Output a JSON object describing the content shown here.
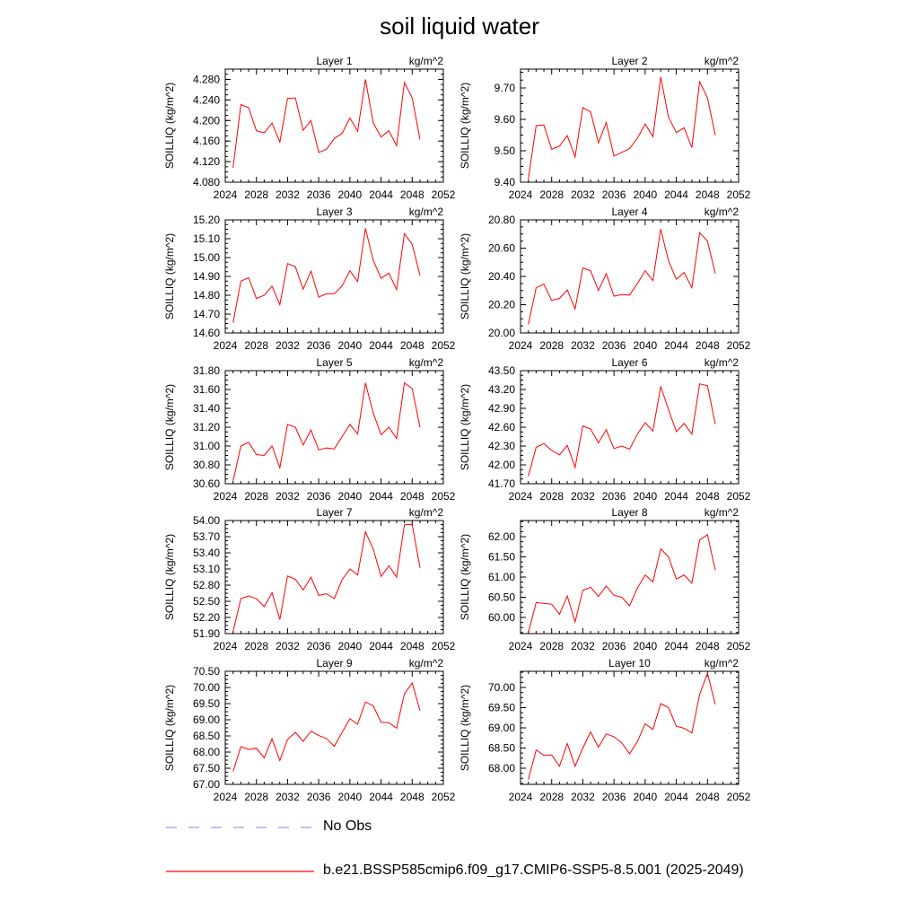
{
  "title": "soil liquid water",
  "legend": {
    "obs_label": "No Obs",
    "obs_color": "#9a9aee",
    "model_label": "b.e21.BSSP585cmip6.f09_g17.CMIP6-SSP5-8.5.001 (2025-2049)",
    "model_color": "#ff0000"
  },
  "chart_data": [
    {
      "type": "line",
      "title": "Layer 1",
      "unit": "kg/m^2",
      "ylabel": "SOILLIQ  (kg/m^2)",
      "xlim": [
        2024,
        2052
      ],
      "xticks": [
        2024,
        2028,
        2032,
        2036,
        2040,
        2044,
        2048,
        2052
      ],
      "ylim": [
        4.08,
        4.3
      ],
      "yticks": [
        "4.080",
        "4.120",
        "4.160",
        "4.200",
        "4.240",
        "4.280"
      ],
      "x": [
        2025,
        2026,
        2027,
        2028,
        2029,
        2030,
        2031,
        2032,
        2033,
        2034,
        2035,
        2036,
        2037,
        2038,
        2039,
        2040,
        2041,
        2042,
        2043,
        2044,
        2045,
        2046,
        2047,
        2048,
        2049
      ],
      "series": [
        {
          "color": "#ff0000",
          "values": [
            4.108,
            4.231,
            4.225,
            4.18,
            4.176,
            4.195,
            4.158,
            4.243,
            4.244,
            4.181,
            4.2,
            4.138,
            4.144,
            4.165,
            4.175,
            4.205,
            4.179,
            4.28,
            4.195,
            4.168,
            4.18,
            4.151,
            4.274,
            4.244,
            4.163
          ]
        }
      ]
    },
    {
      "type": "line",
      "title": "Layer 2",
      "unit": "kg/m^2",
      "ylabel": "SOILLIQ  (kg/m^2)",
      "xlim": [
        2024,
        2052
      ],
      "xticks": [
        2024,
        2028,
        2032,
        2036,
        2040,
        2044,
        2048,
        2052
      ],
      "ylim": [
        9.4,
        9.76
      ],
      "yticks": [
        "9.40",
        "9.50",
        "9.60",
        "9.70"
      ],
      "x": [
        2025,
        2026,
        2027,
        2028,
        2029,
        2030,
        2031,
        2032,
        2033,
        2034,
        2035,
        2036,
        2037,
        2038,
        2039,
        2040,
        2041,
        2042,
        2043,
        2044,
        2045,
        2046,
        2047,
        2048,
        2049
      ],
      "series": [
        {
          "color": "#ff0000",
          "values": [
            9.41,
            9.58,
            9.582,
            9.505,
            9.515,
            9.548,
            9.48,
            9.637,
            9.624,
            9.525,
            9.59,
            9.483,
            9.495,
            9.507,
            9.54,
            9.585,
            9.545,
            9.735,
            9.607,
            9.558,
            9.573,
            9.51,
            9.72,
            9.668,
            9.55
          ]
        }
      ]
    },
    {
      "type": "line",
      "title": "Layer 3",
      "unit": "kg/m^2",
      "ylabel": "SOILLIQ  (kg/m^2)",
      "xlim": [
        2024,
        2052
      ],
      "xticks": [
        2024,
        2028,
        2032,
        2036,
        2040,
        2044,
        2048,
        2052
      ],
      "ylim": [
        14.6,
        15.2
      ],
      "yticks": [
        "14.60",
        "14.70",
        "14.80",
        "14.90",
        "15.00",
        "15.10",
        "15.20"
      ],
      "x": [
        2025,
        2026,
        2027,
        2028,
        2029,
        2030,
        2031,
        2032,
        2033,
        2034,
        2035,
        2036,
        2037,
        2038,
        2039,
        2040,
        2041,
        2042,
        2043,
        2044,
        2045,
        2046,
        2047,
        2048,
        2049
      ],
      "series": [
        {
          "color": "#ff0000",
          "values": [
            14.655,
            14.875,
            14.893,
            14.783,
            14.8,
            14.848,
            14.75,
            14.968,
            14.952,
            14.832,
            14.928,
            14.79,
            14.808,
            14.808,
            14.85,
            14.93,
            14.873,
            15.155,
            14.985,
            14.89,
            14.917,
            14.83,
            15.127,
            15.07,
            14.905
          ]
        }
      ]
    },
    {
      "type": "line",
      "title": "Layer 4",
      "unit": "kg/m^2",
      "ylabel": "SOILLIQ  (kg/m^2)",
      "xlim": [
        2024,
        2052
      ],
      "xticks": [
        2024,
        2028,
        2032,
        2036,
        2040,
        2044,
        2048,
        2052
      ],
      "ylim": [
        20.0,
        20.8
      ],
      "yticks": [
        "20.00",
        "20.20",
        "20.40",
        "20.60",
        "20.80"
      ],
      "x": [
        2025,
        2026,
        2027,
        2028,
        2029,
        2030,
        2031,
        2032,
        2033,
        2034,
        2035,
        2036,
        2037,
        2038,
        2039,
        2040,
        2041,
        2042,
        2043,
        2044,
        2045,
        2046,
        2047,
        2048,
        2049
      ],
      "series": [
        {
          "color": "#ff0000",
          "values": [
            20.06,
            20.32,
            20.345,
            20.23,
            20.245,
            20.305,
            20.17,
            20.46,
            20.44,
            20.3,
            20.42,
            20.26,
            20.272,
            20.268,
            20.35,
            20.44,
            20.37,
            20.735,
            20.51,
            20.38,
            20.428,
            20.32,
            20.71,
            20.65,
            20.42
          ]
        }
      ]
    },
    {
      "type": "line",
      "title": "Layer 5",
      "unit": "kg/m^2",
      "ylabel": "SOILLIQ  (kg/m^2)",
      "xlim": [
        2024,
        2052
      ],
      "xticks": [
        2024,
        2028,
        2032,
        2036,
        2040,
        2044,
        2048,
        2052
      ],
      "ylim": [
        30.6,
        31.8
      ],
      "yticks": [
        "30.60",
        "30.80",
        "31.00",
        "31.20",
        "31.40",
        "31.60",
        "31.80"
      ],
      "x": [
        2025,
        2026,
        2027,
        2028,
        2029,
        2030,
        2031,
        2032,
        2033,
        2034,
        2035,
        2036,
        2037,
        2038,
        2039,
        2040,
        2041,
        2042,
        2043,
        2044,
        2045,
        2046,
        2047,
        2048,
        2049
      ],
      "series": [
        {
          "color": "#ff0000",
          "values": [
            30.63,
            31.0,
            31.04,
            30.91,
            30.9,
            31.0,
            30.77,
            31.23,
            31.2,
            31.01,
            31.17,
            30.96,
            30.98,
            30.97,
            31.1,
            31.23,
            31.13,
            31.67,
            31.35,
            31.12,
            31.2,
            31.08,
            31.67,
            31.61,
            31.2
          ]
        }
      ]
    },
    {
      "type": "line",
      "title": "Layer 6",
      "unit": "kg/m^2",
      "ylabel": "SOILLIQ  (kg/m^2)",
      "xlim": [
        2024,
        2052
      ],
      "xticks": [
        2024,
        2028,
        2032,
        2036,
        2040,
        2044,
        2048,
        2052
      ],
      "ylim": [
        41.7,
        43.5
      ],
      "yticks": [
        "41.70",
        "42.00",
        "42.30",
        "42.60",
        "42.90",
        "43.20",
        "43.50"
      ],
      "x": [
        2025,
        2026,
        2027,
        2028,
        2029,
        2030,
        2031,
        2032,
        2033,
        2034,
        2035,
        2036,
        2037,
        2038,
        2039,
        2040,
        2041,
        2042,
        2043,
        2044,
        2045,
        2046,
        2047,
        2048,
        2049
      ],
      "series": [
        {
          "color": "#ff0000",
          "values": [
            41.82,
            42.28,
            42.34,
            42.23,
            42.16,
            42.31,
            41.96,
            42.62,
            42.57,
            42.35,
            42.56,
            42.26,
            42.3,
            42.25,
            42.49,
            42.67,
            42.54,
            43.25,
            42.88,
            42.53,
            42.66,
            42.49,
            43.29,
            43.26,
            42.65
          ]
        }
      ]
    },
    {
      "type": "line",
      "title": "Layer 7",
      "unit": "kg/m^2",
      "ylabel": "SOILLIQ  (kg/m^2)",
      "xlim": [
        2024,
        2052
      ],
      "xticks": [
        2024,
        2028,
        2032,
        2036,
        2040,
        2044,
        2048,
        2052
      ],
      "ylim": [
        51.9,
        54.0
      ],
      "yticks": [
        "51.90",
        "52.20",
        "52.50",
        "52.80",
        "53.10",
        "53.40",
        "53.70",
        "54.00"
      ],
      "x": [
        2025,
        2026,
        2027,
        2028,
        2029,
        2030,
        2031,
        2032,
        2033,
        2034,
        2035,
        2036,
        2037,
        2038,
        2039,
        2040,
        2041,
        2042,
        2043,
        2044,
        2045,
        2046,
        2047,
        2048,
        2049
      ],
      "series": [
        {
          "color": "#ff0000",
          "values": [
            51.94,
            52.55,
            52.6,
            52.55,
            52.4,
            52.66,
            52.16,
            52.97,
            52.91,
            52.71,
            52.95,
            52.61,
            52.64,
            52.55,
            52.9,
            53.1,
            52.99,
            53.79,
            53.47,
            52.96,
            53.16,
            52.95,
            53.92,
            53.93,
            53.12
          ]
        }
      ]
    },
    {
      "type": "line",
      "title": "Layer 8",
      "unit": "kg/m^2",
      "ylabel": "SOILLIQ  (kg/m^2)",
      "xlim": [
        2024,
        2052
      ],
      "xticks": [
        2024,
        2028,
        2032,
        2036,
        2040,
        2044,
        2048,
        2052
      ],
      "ylim": [
        59.6,
        62.4
      ],
      "yticks": [
        "60.00",
        "60.50",
        "61.00",
        "61.50",
        "62.00"
      ],
      "x": [
        2025,
        2026,
        2027,
        2028,
        2029,
        2030,
        2031,
        2032,
        2033,
        2034,
        2035,
        2036,
        2037,
        2038,
        2039,
        2040,
        2041,
        2042,
        2043,
        2044,
        2045,
        2046,
        2047,
        2048,
        2049
      ],
      "series": [
        {
          "color": "#ff0000",
          "values": [
            59.62,
            60.37,
            60.35,
            60.33,
            60.08,
            60.53,
            59.89,
            60.67,
            60.75,
            60.52,
            60.78,
            60.55,
            60.5,
            60.29,
            60.73,
            61.05,
            60.88,
            61.7,
            61.5,
            60.95,
            61.05,
            60.85,
            61.92,
            62.05,
            61.17
          ]
        }
      ]
    },
    {
      "type": "line",
      "title": "Layer 9",
      "unit": "kg/m^2",
      "ylabel": "SOILLIQ  (kg/m^2)",
      "xlim": [
        2024,
        2052
      ],
      "xticks": [
        2024,
        2028,
        2032,
        2036,
        2040,
        2044,
        2048,
        2052
      ],
      "ylim": [
        67.0,
        70.5
      ],
      "yticks": [
        "67.00",
        "67.50",
        "68.00",
        "68.50",
        "69.00",
        "69.50",
        "70.00",
        "70.50"
      ],
      "x": [
        2025,
        2026,
        2027,
        2028,
        2029,
        2030,
        2031,
        2032,
        2033,
        2034,
        2035,
        2036,
        2037,
        2038,
        2039,
        2040,
        2041,
        2042,
        2043,
        2044,
        2045,
        2046,
        2047,
        2048,
        2049
      ],
      "series": [
        {
          "color": "#ff0000",
          "values": [
            67.4,
            68.17,
            68.08,
            68.12,
            67.82,
            68.41,
            67.74,
            68.39,
            68.61,
            68.33,
            68.65,
            68.51,
            68.42,
            68.18,
            68.61,
            69.03,
            68.86,
            69.55,
            69.43,
            68.92,
            68.91,
            68.74,
            69.8,
            70.14,
            69.28
          ]
        }
      ]
    },
    {
      "type": "line",
      "title": "Layer 10",
      "unit": "kg/m^2",
      "ylabel": "SOILLIQ  (kg/m^2)",
      "xlim": [
        2024,
        2052
      ],
      "xticks": [
        2024,
        2028,
        2032,
        2036,
        2040,
        2044,
        2048,
        2052
      ],
      "ylim": [
        67.6,
        70.4
      ],
      "yticks": [
        "68.00",
        "68.50",
        "69.00",
        "69.50",
        "70.00"
      ],
      "x": [
        2025,
        2026,
        2027,
        2028,
        2029,
        2030,
        2031,
        2032,
        2033,
        2034,
        2035,
        2036,
        2037,
        2038,
        2039,
        2040,
        2041,
        2042,
        2043,
        2044,
        2045,
        2046,
        2047,
        2048,
        2049
      ],
      "series": [
        {
          "color": "#ff0000",
          "values": [
            67.72,
            68.45,
            68.32,
            68.33,
            68.05,
            68.61,
            68.05,
            68.5,
            68.9,
            68.52,
            68.85,
            68.78,
            68.63,
            68.36,
            68.66,
            69.1,
            68.96,
            69.6,
            69.5,
            69.04,
            68.99,
            68.87,
            69.83,
            70.35,
            69.58
          ]
        }
      ]
    }
  ]
}
